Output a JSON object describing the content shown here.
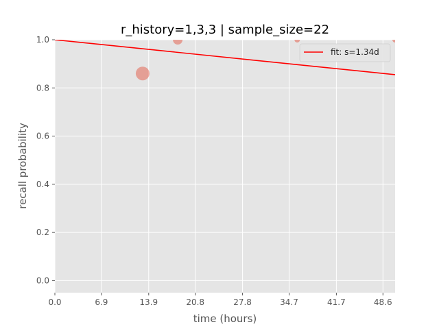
{
  "chart_data": {
    "type": "scatter",
    "title": "r_history=1,3,3 | sample_size=22",
    "xlabel": "time (hours)",
    "ylabel": "recall probability",
    "xlim": [
      0,
      50.4
    ],
    "ylim": [
      -0.05,
      1.0
    ],
    "xticks": [
      0.0,
      6.9,
      13.9,
      20.8,
      27.8,
      34.7,
      41.7,
      48.6
    ],
    "xtick_labels": [
      "0.0",
      "6.9",
      "13.9",
      "20.8",
      "27.8",
      "34.7",
      "41.7",
      "48.6"
    ],
    "yticks": [
      0.0,
      0.2,
      0.4,
      0.6,
      0.8,
      1.0
    ],
    "ytick_labels": [
      "0.0",
      "0.2",
      "0.4",
      "0.6",
      "0.8",
      "1.0"
    ],
    "grid": true,
    "legend": {
      "placement": "top-right",
      "entries": [
        "fit: s=1.34d"
      ]
    },
    "scatter": {
      "color": "#e24a33",
      "points": [
        {
          "x": 13.0,
          "y": 0.86,
          "size": 10
        },
        {
          "x": 18.2,
          "y": 1.0,
          "size": 7
        },
        {
          "x": 35.9,
          "y": 1.0,
          "size": 4
        },
        {
          "x": 50.4,
          "y": 1.0,
          "size": 4
        }
      ]
    },
    "fit_line": {
      "name": "fit: s=1.34d",
      "color": "#ff0000",
      "points": [
        {
          "x": 0.0,
          "y": 1.0
        },
        {
          "x": 50.4,
          "y": 0.855
        }
      ]
    },
    "colors": {
      "plot_background": "#e5e5e5",
      "grid": "#ffffff"
    }
  }
}
